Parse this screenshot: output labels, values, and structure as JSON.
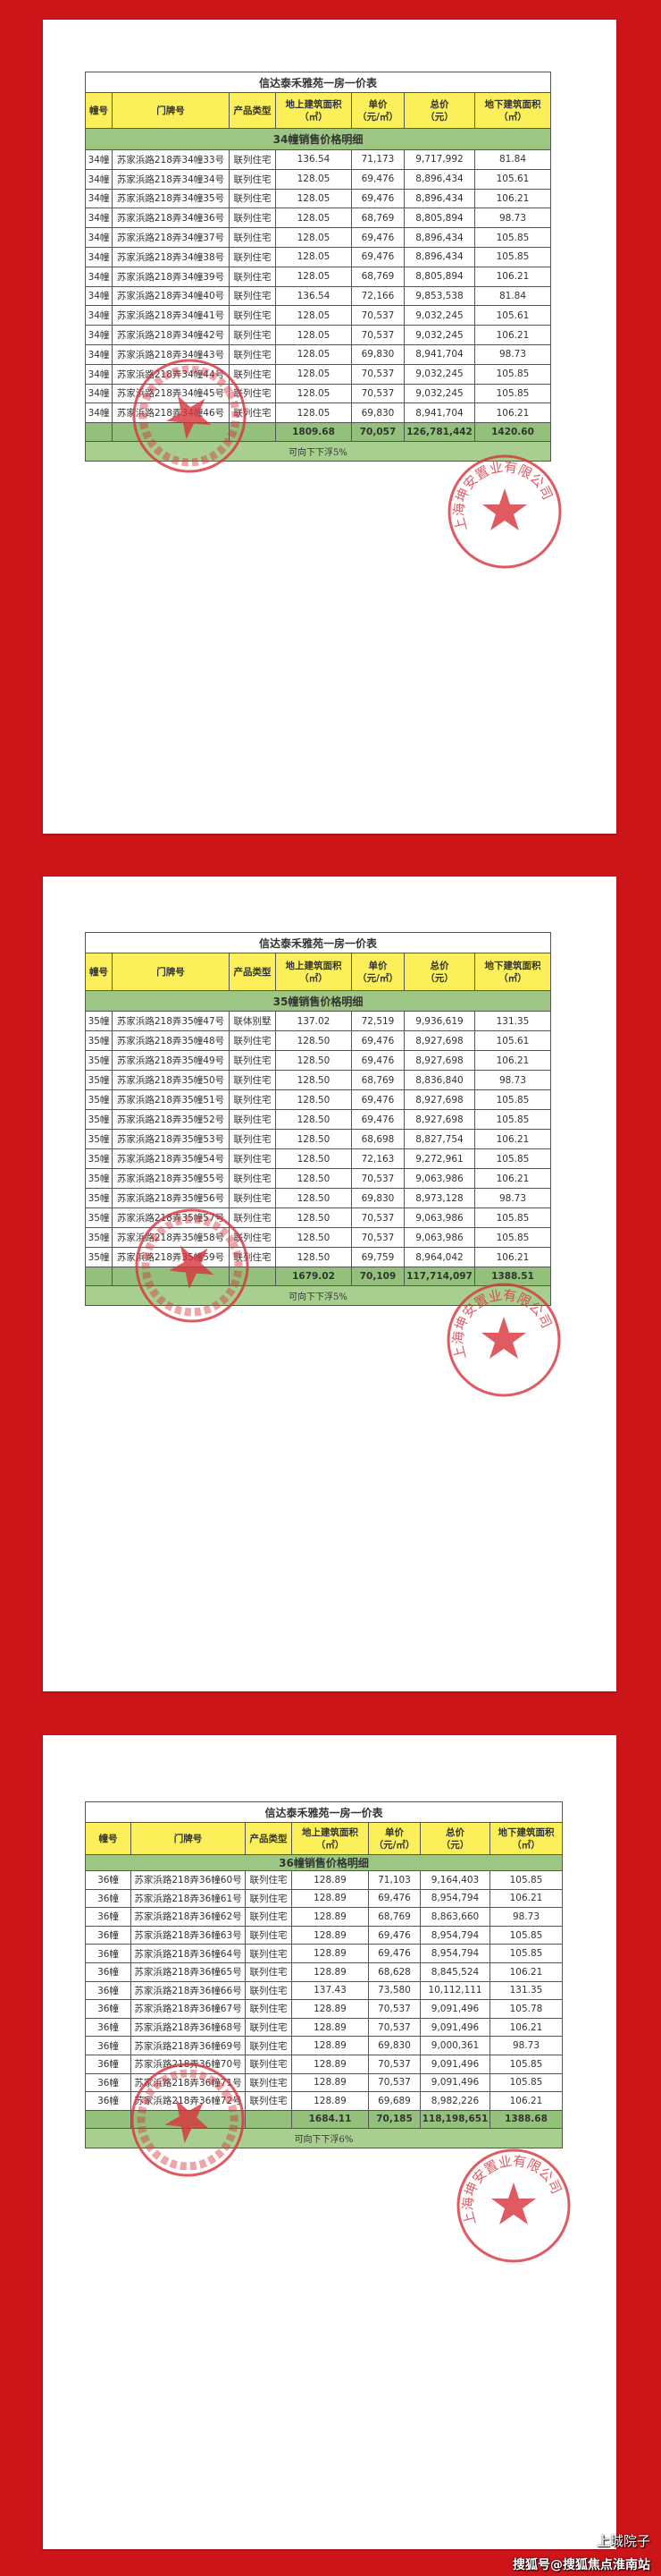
{
  "colors": {
    "background": "#cc1419",
    "header": "#fbf05a",
    "section": "#9dc684",
    "total": "#93c07a",
    "seal": "#d9323c"
  },
  "seal_text": "上海坤安置业有限公司",
  "tables": [
    {
      "title": "信达泰禾雅苑一房一价表",
      "headers": [
        "幢号",
        "门牌号",
        "产品类型",
        "地上建筑面积\n（㎡）",
        "单价\n（元/㎡）",
        "总价\n（元）",
        "地下建筑面积\n（㎡）"
      ],
      "section": "34幢销售价格明细",
      "rows": [
        [
          "34幢",
          "苏家浜路218弄34幢33号",
          "联列住宅",
          "136.54",
          "71,173",
          "9,717,992",
          "81.84"
        ],
        [
          "34幢",
          "苏家浜路218弄34幢34号",
          "联列住宅",
          "128.05",
          "69,476",
          "8,896,434",
          "105.61"
        ],
        [
          "34幢",
          "苏家浜路218弄34幢35号",
          "联列住宅",
          "128.05",
          "69,476",
          "8,896,434",
          "106.21"
        ],
        [
          "34幢",
          "苏家浜路218弄34幢36号",
          "联列住宅",
          "128.05",
          "68,769",
          "8,805,894",
          "98.73"
        ],
        [
          "34幢",
          "苏家浜路218弄34幢37号",
          "联列住宅",
          "128.05",
          "69,476",
          "8,896,434",
          "105.85"
        ],
        [
          "34幢",
          "苏家浜路218弄34幢38号",
          "联列住宅",
          "128.05",
          "69,476",
          "8,896,434",
          "105.85"
        ],
        [
          "34幢",
          "苏家浜路218弄34幢39号",
          "联列住宅",
          "128.05",
          "68,769",
          "8,805,894",
          "106.21"
        ],
        [
          "34幢",
          "苏家浜路218弄34幢40号",
          "联列住宅",
          "136.54",
          "72,166",
          "9,853,538",
          "81.84"
        ],
        [
          "34幢",
          "苏家浜路218弄34幢41号",
          "联列住宅",
          "128.05",
          "70,537",
          "9,032,245",
          "105.61"
        ],
        [
          "34幢",
          "苏家浜路218弄34幢42号",
          "联列住宅",
          "128.05",
          "70,537",
          "9,032,245",
          "106.21"
        ],
        [
          "34幢",
          "苏家浜路218弄34幢43号",
          "联列住宅",
          "128.05",
          "69,830",
          "8,941,704",
          "98.73"
        ],
        [
          "34幢",
          "苏家浜路218弄34幢44号",
          "联列住宅",
          "128.05",
          "70,537",
          "9,032,245",
          "105.85"
        ],
        [
          "34幢",
          "苏家浜路218弄34幢45号",
          "联列住宅",
          "128.05",
          "70,537",
          "9,032,245",
          "105.85"
        ],
        [
          "34幢",
          "苏家浜路218弄34幢46号",
          "联列住宅",
          "128.05",
          "69,830",
          "8,941,704",
          "106.21"
        ]
      ],
      "total": [
        "",
        "",
        "",
        "1809.68",
        "70,057",
        "126,781,442",
        "1420.60"
      ],
      "footer": "可向下下浮5%"
    },
    {
      "title": "信达泰禾雅苑一房一价表",
      "headers": [
        "幢号",
        "门牌号",
        "产品类型",
        "地上建筑面积\n（㎡）",
        "单价\n（元/㎡）",
        "总价\n（元）",
        "地下建筑面积\n（㎡）"
      ],
      "section": "35幢销售价格明细",
      "rows": [
        [
          "35幢",
          "苏家浜路218弄35幢47号",
          "联体别墅",
          "137.02",
          "72,519",
          "9,936,619",
          "131.35"
        ],
        [
          "35幢",
          "苏家浜路218弄35幢48号",
          "联列住宅",
          "128.50",
          "69,476",
          "8,927,698",
          "105.61"
        ],
        [
          "35幢",
          "苏家浜路218弄35幢49号",
          "联列住宅",
          "128.50",
          "69,476",
          "8,927,698",
          "106.21"
        ],
        [
          "35幢",
          "苏家浜路218弄35幢50号",
          "联列住宅",
          "128.50",
          "68,769",
          "8,836,840",
          "98.73"
        ],
        [
          "35幢",
          "苏家浜路218弄35幢51号",
          "联列住宅",
          "128.50",
          "69,476",
          "8,927,698",
          "105.85"
        ],
        [
          "35幢",
          "苏家浜路218弄35幢52号",
          "联列住宅",
          "128.50",
          "69,476",
          "8,927,698",
          "105.85"
        ],
        [
          "35幢",
          "苏家浜路218弄35幢53号",
          "联列住宅",
          "128.50",
          "68,698",
          "8,827,754",
          "106.21"
        ],
        [
          "35幢",
          "苏家浜路218弄35幢54号",
          "联列住宅",
          "128.50",
          "72,163",
          "9,272,961",
          "105.85"
        ],
        [
          "35幢",
          "苏家浜路218弄35幢55号",
          "联列住宅",
          "128.50",
          "70,537",
          "9,063,986",
          "106.21"
        ],
        [
          "35幢",
          "苏家浜路218弄35幢56号",
          "联列住宅",
          "128.50",
          "69,830",
          "8,973,128",
          "98.73"
        ],
        [
          "35幢",
          "苏家浜路218弄35幢57号",
          "联列住宅",
          "128.50",
          "70,537",
          "9,063,986",
          "105.85"
        ],
        [
          "35幢",
          "苏家浜路218弄35幢58号",
          "联列住宅",
          "128.50",
          "70,537",
          "9,063,986",
          "105.85"
        ],
        [
          "35幢",
          "苏家浜路218弄35幢59号",
          "联列住宅",
          "128.50",
          "69,759",
          "8,964,042",
          "106.21"
        ]
      ],
      "total": [
        "",
        "",
        "",
        "1679.02",
        "70,109",
        "117,714,097",
        "1388.51"
      ],
      "footer": "可向下下浮5%"
    },
    {
      "title": "信达泰禾雅苑一房一价表",
      "headers": [
        "幢号",
        "门牌号",
        "产品类型",
        "地上建筑面积\n（㎡）",
        "单价\n（元/㎡）",
        "总价\n（元）",
        "地下建筑面积\n（㎡）"
      ],
      "section": "36幢销售价格明细",
      "rows": [
        [
          "36幢",
          "苏家浜路218弄36幢60号",
          "联列住宅",
          "128.89",
          "71,103",
          "9,164,403",
          "105.85"
        ],
        [
          "36幢",
          "苏家浜路218弄36幢61号",
          "联列住宅",
          "128.89",
          "69,476",
          "8,954,794",
          "106.21"
        ],
        [
          "36幢",
          "苏家浜路218弄36幢62号",
          "联列住宅",
          "128.89",
          "68,769",
          "8,863,660",
          "98.73"
        ],
        [
          "36幢",
          "苏家浜路218弄36幢63号",
          "联列住宅",
          "128.89",
          "69,476",
          "8,954,794",
          "105.85"
        ],
        [
          "36幢",
          "苏家浜路218弄36幢64号",
          "联列住宅",
          "128.89",
          "69,476",
          "8,954,794",
          "105.85"
        ],
        [
          "36幢",
          "苏家浜路218弄36幢65号",
          "联列住宅",
          "128.89",
          "68,628",
          "8,845,524",
          "106.21"
        ],
        [
          "36幢",
          "苏家浜路218弄36幢66号",
          "联列住宅",
          "137.43",
          "73,580",
          "10,112,111",
          "131.35"
        ],
        [
          "36幢",
          "苏家浜路218弄36幢67号",
          "联列住宅",
          "128.89",
          "70,537",
          "9,091,496",
          "105.78"
        ],
        [
          "36幢",
          "苏家浜路218弄36幢68号",
          "联列住宅",
          "128.89",
          "70,537",
          "9,091,496",
          "106.21"
        ],
        [
          "36幢",
          "苏家浜路218弄36幢69号",
          "联列住宅",
          "128.89",
          "69,830",
          "9,000,361",
          "98.73"
        ],
        [
          "36幢",
          "苏家浜路218弄36幢70号",
          "联列住宅",
          "128.89",
          "70,537",
          "9,091,496",
          "105.85"
        ],
        [
          "36幢",
          "苏家浜路218弄36幢71号",
          "联列住宅",
          "128.89",
          "70,537",
          "9,091,496",
          "105.85"
        ],
        [
          "36幢",
          "苏家浜路218弄36幢72号",
          "联列住宅",
          "128.89",
          "69,689",
          "8,982,226",
          "106.21"
        ]
      ],
      "total": [
        "",
        "",
        "",
        "1684.11",
        "70,185",
        "118,198,651",
        "1388.68"
      ],
      "footer": "可向下下浮6%"
    }
  ],
  "watermark": {
    "account": "上城院子",
    "source": "搜狐号@搜狐焦点淮南站",
    "icon": "wechat-icon"
  }
}
